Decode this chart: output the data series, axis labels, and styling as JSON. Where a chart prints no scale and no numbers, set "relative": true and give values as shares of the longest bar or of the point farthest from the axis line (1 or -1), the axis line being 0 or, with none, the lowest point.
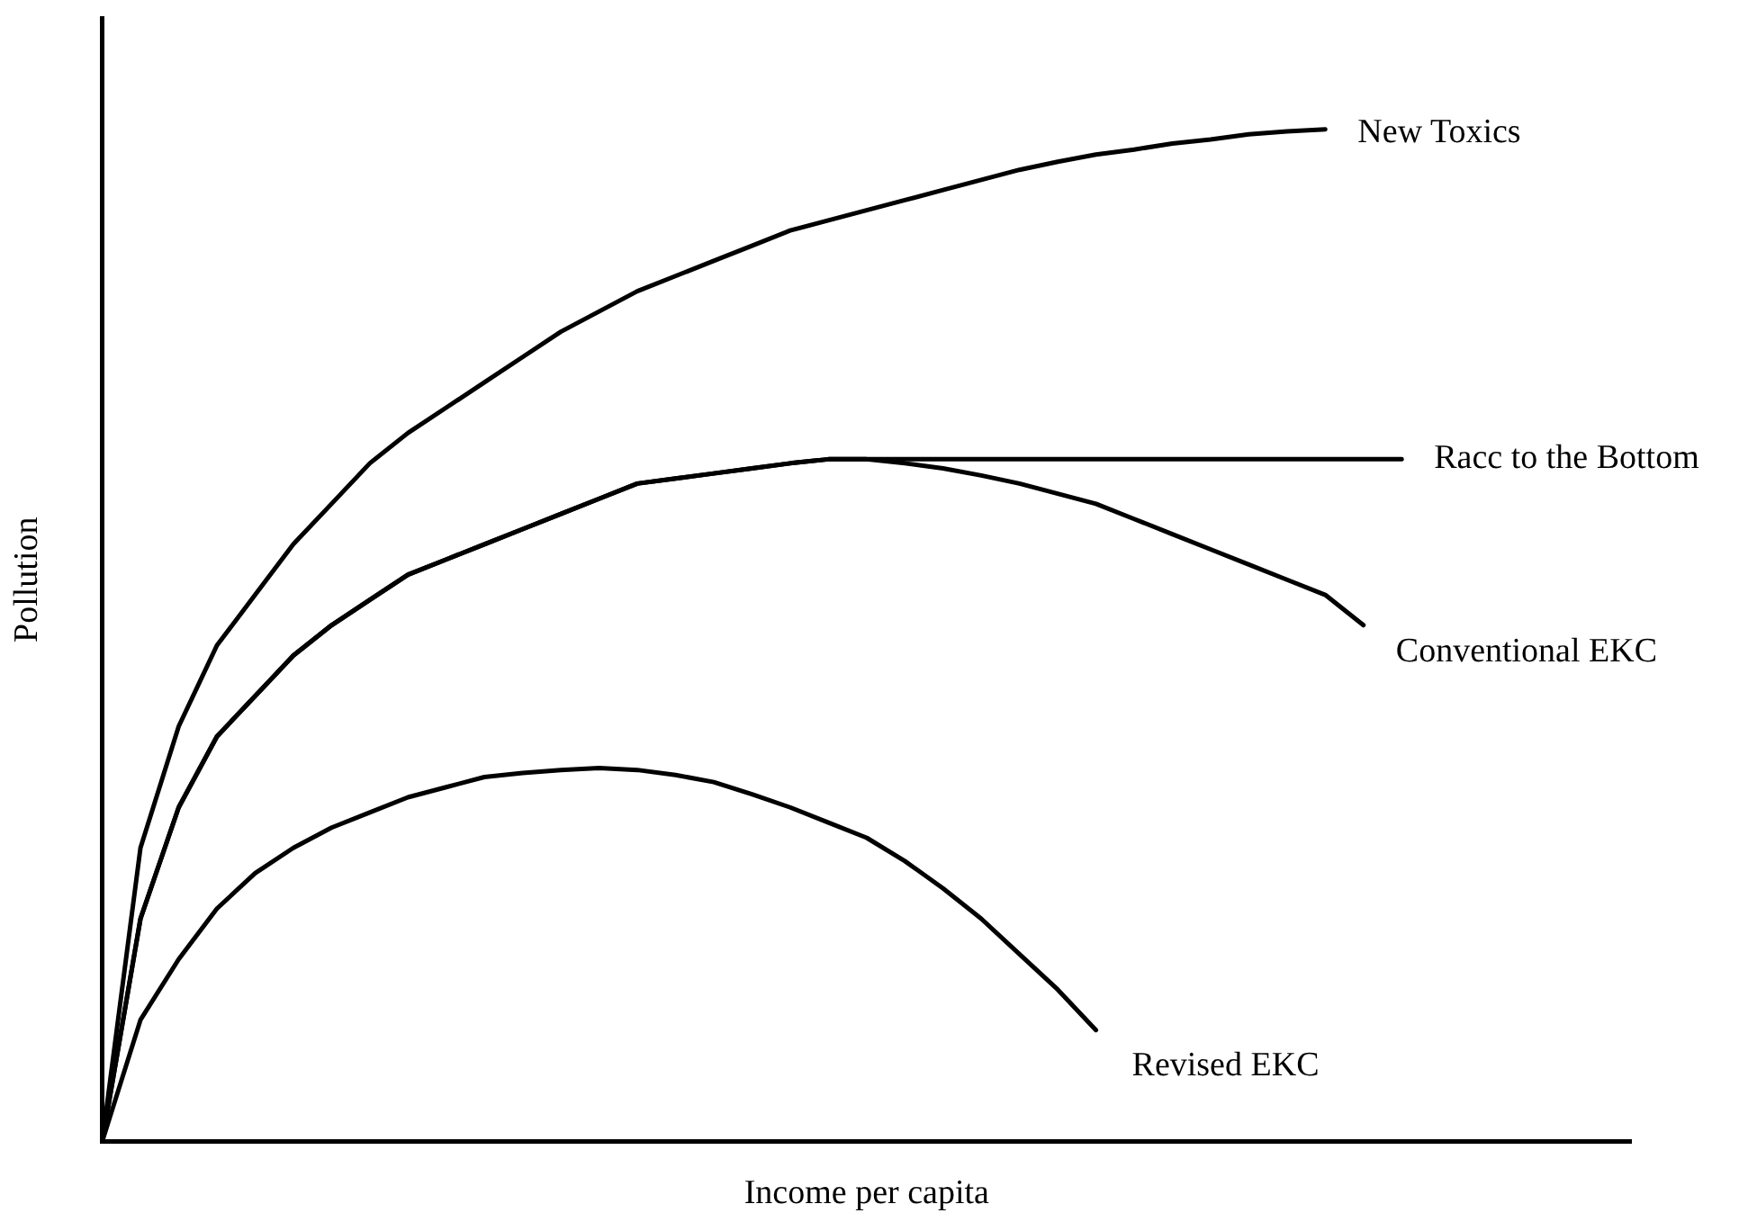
{
  "chart_data": {
    "type": "line",
    "relative": true,
    "xlabel": "Income per capita",
    "ylabel": "Pollution",
    "legend": false,
    "grid": false,
    "marker": "none",
    "tick_labels": false,
    "categories": [
      null,
      null,
      null,
      null,
      null,
      null,
      null,
      null,
      null,
      null,
      null,
      null,
      null,
      null,
      null,
      null,
      null,
      null,
      null,
      null,
      null,
      null,
      null,
      null,
      null,
      null,
      null,
      null,
      null,
      null,
      null,
      null,
      null,
      null,
      null,
      null,
      null,
      null,
      null,
      null,
      null
    ],
    "series": [
      {
        "name": "New Toxics",
        "color": "#000000",
        "values": [
          0,
          0.29,
          0.41,
          0.49,
          0.54,
          0.59,
          0.63,
          0.67,
          0.7,
          0.725,
          0.75,
          0.775,
          0.8,
          0.82,
          0.84,
          0.855,
          0.87,
          0.885,
          0.9,
          0.91,
          0.92,
          0.93,
          0.94,
          0.95,
          0.96,
          0.968,
          0.975,
          0.98,
          0.986,
          0.99,
          0.995,
          0.998,
          1,
          null,
          null,
          null,
          null,
          null,
          null,
          null,
          null
        ]
      },
      {
        "name": "Racc to the Bottom",
        "color": "#000000",
        "values": [
          0,
          0.22,
          0.33,
          0.4,
          0.44,
          0.48,
          0.51,
          0.535,
          0.56,
          0.575,
          0.59,
          0.605,
          0.62,
          0.635,
          0.65,
          0.655,
          0.66,
          0.665,
          0.67,
          0.674,
          0.674,
          0.674,
          0.674,
          0.674,
          0.674,
          0.674,
          0.674,
          0.674,
          0.674,
          0.674,
          0.674,
          0.674,
          0.674,
          0.674,
          0.674,
          null,
          null,
          null,
          null,
          null,
          null
        ]
      },
      {
        "name": "Conventional EKC",
        "color": "#000000",
        "values": [
          0,
          0.22,
          0.33,
          0.4,
          0.44,
          0.48,
          0.51,
          0.535,
          0.56,
          0.575,
          0.59,
          0.605,
          0.62,
          0.635,
          0.65,
          0.655,
          0.66,
          0.665,
          0.67,
          0.674,
          0.674,
          0.67,
          0.665,
          0.658,
          0.65,
          0.64,
          0.63,
          0.615,
          0.6,
          0.585,
          0.57,
          0.555,
          0.54,
          0.51,
          null,
          null,
          null,
          null,
          null,
          null,
          null
        ]
      },
      {
        "name": "Revised EKC",
        "color": "#000000",
        "values": [
          0,
          0.12,
          0.18,
          0.23,
          0.265,
          0.29,
          0.31,
          0.325,
          0.34,
          0.35,
          0.36,
          0.364,
          0.367,
          0.369,
          0.367,
          0.362,
          0.355,
          0.343,
          0.33,
          0.315,
          0.3,
          0.277,
          0.25,
          0.22,
          0.185,
          0.15,
          0.11,
          null,
          null,
          null,
          null,
          null,
          null,
          null,
          null,
          null,
          null,
          null,
          null,
          null,
          null
        ]
      }
    ]
  }
}
